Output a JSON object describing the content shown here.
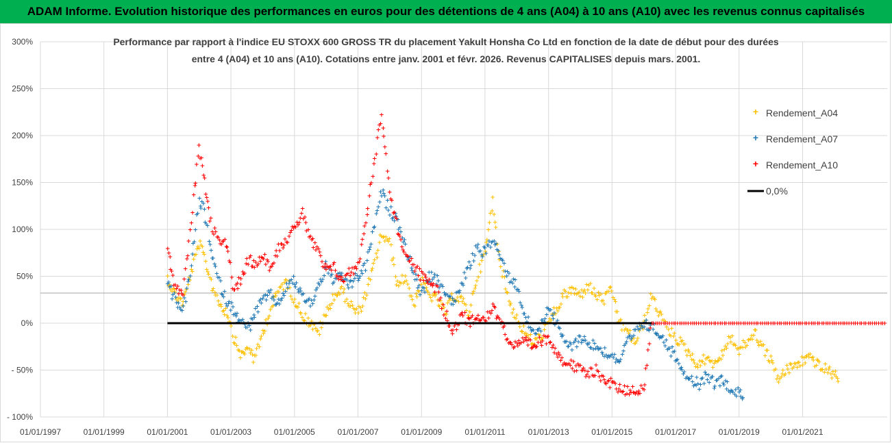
{
  "header": {
    "banner": "ADAM Informe. Evolution historique des performances en euros pour des détentions de 4 ans (A04) à 10 ans (A10) avec les revenus connus capitalisés"
  },
  "colors": {
    "banner_bg": "#00b050",
    "A04": "#ffc000",
    "A07": "#1f77b4",
    "A10": "#ff0000",
    "zero": "#000000"
  },
  "chart_data": {
    "type": "scatter",
    "title_line1": "Performance par rapport à l'indice EU STOXX 600 GROSS TR  du placement Yakult Honsha Co Ltd en fonction de la date de début pour des durées",
    "title_line2": "entre 4 (A04) et 10 ans (A10). Cotations entre janv. 2001 et févr. 2026. Revenus CAPITALISES depuis mars. 2001.",
    "xlim": [
      "1997-01-01",
      "2023-09-01"
    ],
    "ylim": [
      -100,
      300
    ],
    "x_ticks": [
      "01/01/1997",
      "01/01/1999",
      "01/01/2001",
      "01/01/2003",
      "01/01/2005",
      "01/01/2007",
      "01/01/2009",
      "01/01/2011",
      "01/01/2013",
      "01/01/2015",
      "01/01/2017",
      "01/01/2019",
      "01/01/2021"
    ],
    "y_ticks": [
      "300%",
      "250%",
      "200%",
      "150%",
      "100%",
      "50%",
      "0%",
      "- 50%",
      "- 100%"
    ],
    "y_tick_values": [
      300,
      250,
      200,
      150,
      100,
      50,
      0,
      -50,
      -100
    ],
    "grid": true,
    "legend_position": "top-right",
    "series": [
      {
        "name": "Rendement_A04",
        "points": [
          [
            "2001-01-01",
            48
          ],
          [
            "2001-04-01",
            30
          ],
          [
            "2001-07-01",
            22
          ],
          [
            "2001-10-01",
            55
          ],
          [
            "2002-01-01",
            85
          ],
          [
            "2002-03-01",
            70
          ],
          [
            "2002-06-01",
            40
          ],
          [
            "2002-09-01",
            20
          ],
          [
            "2002-12-01",
            10
          ],
          [
            "2003-02-01",
            -15
          ],
          [
            "2003-05-01",
            -35
          ],
          [
            "2003-08-01",
            -25
          ],
          [
            "2003-10-01",
            -40
          ],
          [
            "2004-01-01",
            -10
          ],
          [
            "2004-04-01",
            15
          ],
          [
            "2004-07-01",
            35
          ],
          [
            "2004-10-01",
            45
          ],
          [
            "2005-01-01",
            25
          ],
          [
            "2005-04-01",
            10
          ],
          [
            "2005-07-01",
            0
          ],
          [
            "2005-10-01",
            -10
          ],
          [
            "2006-01-01",
            10
          ],
          [
            "2006-04-01",
            30
          ],
          [
            "2006-07-01",
            35
          ],
          [
            "2006-10-01",
            20
          ],
          [
            "2007-01-01",
            10
          ],
          [
            "2007-04-01",
            30
          ],
          [
            "2007-07-01",
            60
          ],
          [
            "2007-10-01",
            95
          ],
          [
            "2008-01-01",
            85
          ],
          [
            "2008-04-01",
            40
          ],
          [
            "2008-07-01",
            50
          ],
          [
            "2008-10-01",
            20
          ],
          [
            "2009-01-01",
            45
          ],
          [
            "2009-04-01",
            30
          ],
          [
            "2009-07-01",
            25
          ],
          [
            "2009-10-01",
            10
          ],
          [
            "2010-01-01",
            30
          ],
          [
            "2010-04-01",
            25
          ],
          [
            "2010-07-01",
            10
          ],
          [
            "2010-10-01",
            50
          ],
          [
            "2011-01-01",
            75
          ],
          [
            "2011-04-01",
            130
          ],
          [
            "2011-07-01",
            60
          ],
          [
            "2011-10-01",
            25
          ],
          [
            "2012-01-01",
            5
          ],
          [
            "2012-04-01",
            -10
          ],
          [
            "2012-07-01",
            -20
          ],
          [
            "2012-10-01",
            -15
          ],
          [
            "2013-01-01",
            0
          ],
          [
            "2013-04-01",
            15
          ],
          [
            "2013-07-01",
            30
          ],
          [
            "2013-10-01",
            35
          ],
          [
            "2014-01-01",
            30
          ],
          [
            "2014-04-01",
            40
          ],
          [
            "2014-07-01",
            30
          ],
          [
            "2014-10-01",
            25
          ],
          [
            "2015-01-01",
            35
          ],
          [
            "2015-04-01",
            0
          ],
          [
            "2015-07-01",
            -10
          ],
          [
            "2015-10-01",
            -20
          ],
          [
            "2016-01-01",
            0
          ],
          [
            "2016-04-01",
            30
          ],
          [
            "2016-07-01",
            10
          ],
          [
            "2016-10-01",
            -5
          ],
          [
            "2017-01-01",
            -15
          ],
          [
            "2017-04-01",
            -25
          ],
          [
            "2017-07-01",
            -35
          ],
          [
            "2017-10-01",
            -45
          ],
          [
            "2018-01-01",
            -35
          ],
          [
            "2018-04-01",
            -45
          ],
          [
            "2018-07-01",
            -30
          ],
          [
            "2018-10-01",
            -15
          ],
          [
            "2019-01-01",
            -30
          ],
          [
            "2019-04-01",
            -20
          ],
          [
            "2019-07-01",
            -10
          ],
          [
            "2019-10-01",
            -25
          ],
          [
            "2020-01-01",
            -40
          ],
          [
            "2020-04-01",
            -60
          ],
          [
            "2020-07-01",
            -50
          ],
          [
            "2020-10-01",
            -45
          ],
          [
            "2021-01-01",
            -40
          ],
          [
            "2021-04-01",
            -35
          ],
          [
            "2021-07-01",
            -45
          ],
          [
            "2021-10-01",
            -50
          ],
          [
            "2022-01-01",
            -55
          ],
          [
            "2022-03-01",
            -58
          ]
        ]
      },
      {
        "name": "Rendement_A07",
        "points": [
          [
            "2001-01-01",
            40
          ],
          [
            "2001-04-01",
            25
          ],
          [
            "2001-07-01",
            15
          ],
          [
            "2001-10-01",
            60
          ],
          [
            "2002-01-01",
            130
          ],
          [
            "2002-03-01",
            120
          ],
          [
            "2002-06-01",
            70
          ],
          [
            "2002-09-01",
            40
          ],
          [
            "2002-12-01",
            20
          ],
          [
            "2003-02-01",
            15
          ],
          [
            "2003-05-01",
            0
          ],
          [
            "2003-08-01",
            -5
          ],
          [
            "2003-10-01",
            10
          ],
          [
            "2004-01-01",
            25
          ],
          [
            "2004-04-01",
            30
          ],
          [
            "2004-07-01",
            20
          ],
          [
            "2004-10-01",
            40
          ],
          [
            "2005-01-01",
            45
          ],
          [
            "2005-04-01",
            30
          ],
          [
            "2005-07-01",
            20
          ],
          [
            "2005-10-01",
            40
          ],
          [
            "2006-01-01",
            60
          ],
          [
            "2006-04-01",
            45
          ],
          [
            "2006-07-01",
            50
          ],
          [
            "2006-10-01",
            40
          ],
          [
            "2007-01-01",
            50
          ],
          [
            "2007-04-01",
            60
          ],
          [
            "2007-07-01",
            100
          ],
          [
            "2007-10-01",
            140
          ],
          [
            "2008-01-01",
            120
          ],
          [
            "2008-04-01",
            110
          ],
          [
            "2008-07-01",
            80
          ],
          [
            "2008-10-01",
            55
          ],
          [
            "2009-01-01",
            30
          ],
          [
            "2009-04-01",
            50
          ],
          [
            "2009-07-01",
            45
          ],
          [
            "2009-10-01",
            35
          ],
          [
            "2010-01-01",
            20
          ],
          [
            "2010-04-01",
            40
          ],
          [
            "2010-07-01",
            60
          ],
          [
            "2010-10-01",
            80
          ],
          [
            "2011-01-01",
            75
          ],
          [
            "2011-04-01",
            90
          ],
          [
            "2011-07-01",
            70
          ],
          [
            "2011-10-01",
            50
          ],
          [
            "2012-01-01",
            40
          ],
          [
            "2012-04-01",
            10
          ],
          [
            "2012-07-01",
            -10
          ],
          [
            "2012-10-01",
            -5
          ],
          [
            "2013-01-01",
            20
          ],
          [
            "2013-04-01",
            0
          ],
          [
            "2013-07-01",
            -20
          ],
          [
            "2013-10-01",
            -25
          ],
          [
            "2014-01-01",
            -15
          ],
          [
            "2014-04-01",
            -20
          ],
          [
            "2014-07-01",
            -25
          ],
          [
            "2014-10-01",
            -30
          ],
          [
            "2015-01-01",
            -35
          ],
          [
            "2015-04-01",
            -40
          ],
          [
            "2015-07-01",
            -20
          ],
          [
            "2015-10-01",
            -10
          ],
          [
            "2016-01-01",
            0
          ],
          [
            "2016-04-01",
            -5
          ],
          [
            "2016-07-01",
            -10
          ],
          [
            "2016-10-01",
            -25
          ],
          [
            "2017-01-01",
            -35
          ],
          [
            "2017-04-01",
            -50
          ],
          [
            "2017-07-01",
            -60
          ],
          [
            "2017-10-01",
            -65
          ],
          [
            "2018-01-01",
            -55
          ],
          [
            "2018-04-01",
            -65
          ],
          [
            "2018-07-01",
            -60
          ],
          [
            "2018-10-01",
            -70
          ],
          [
            "2019-01-01",
            -75
          ],
          [
            "2019-03-01",
            -76
          ]
        ]
      },
      {
        "name": "Rendement_A10",
        "points": [
          [
            "2001-01-01",
            80
          ],
          [
            "2001-04-01",
            40
          ],
          [
            "2001-07-01",
            30
          ],
          [
            "2001-10-01",
            110
          ],
          [
            "2002-01-01",
            185
          ],
          [
            "2002-03-01",
            150
          ],
          [
            "2002-06-01",
            100
          ],
          [
            "2002-09-01",
            90
          ],
          [
            "2002-12-01",
            80
          ],
          [
            "2003-02-01",
            30
          ],
          [
            "2003-05-01",
            50
          ],
          [
            "2003-08-01",
            70
          ],
          [
            "2003-10-01",
            60
          ],
          [
            "2004-01-01",
            75
          ],
          [
            "2004-04-01",
            60
          ],
          [
            "2004-07-01",
            80
          ],
          [
            "2004-10-01",
            90
          ],
          [
            "2005-01-01",
            100
          ],
          [
            "2005-04-01",
            120
          ],
          [
            "2005-07-01",
            90
          ],
          [
            "2005-10-01",
            75
          ],
          [
            "2006-01-01",
            55
          ],
          [
            "2006-04-01",
            60
          ],
          [
            "2006-07-01",
            45
          ],
          [
            "2006-10-01",
            55
          ],
          [
            "2007-01-01",
            60
          ],
          [
            "2007-04-01",
            110
          ],
          [
            "2007-07-01",
            170
          ],
          [
            "2007-10-01",
            225
          ],
          [
            "2008-01-01",
            140
          ],
          [
            "2008-04-01",
            100
          ],
          [
            "2008-07-01",
            75
          ],
          [
            "2008-10-01",
            60
          ],
          [
            "2009-01-01",
            50
          ],
          [
            "2009-04-01",
            45
          ],
          [
            "2009-07-01",
            35
          ],
          [
            "2009-10-01",
            10
          ],
          [
            "2010-01-01",
            -10
          ],
          [
            "2010-04-01",
            10
          ],
          [
            "2010-07-01",
            0
          ],
          [
            "2010-10-01",
            10
          ],
          [
            "2011-01-01",
            5
          ],
          [
            "2011-04-01",
            15
          ],
          [
            "2011-07-01",
            5
          ],
          [
            "2011-10-01",
            -20
          ],
          [
            "2012-01-01",
            -25
          ],
          [
            "2012-04-01",
            -20
          ],
          [
            "2012-07-01",
            -25
          ],
          [
            "2012-10-01",
            -20
          ],
          [
            "2013-01-01",
            -15
          ],
          [
            "2013-04-01",
            -30
          ],
          [
            "2013-07-01",
            -40
          ],
          [
            "2013-10-01",
            -45
          ],
          [
            "2014-01-01",
            -50
          ],
          [
            "2014-04-01",
            -55
          ],
          [
            "2014-07-01",
            -50
          ],
          [
            "2014-10-01",
            -60
          ],
          [
            "2015-01-01",
            -65
          ],
          [
            "2015-04-01",
            -70
          ],
          [
            "2015-07-01",
            -72
          ],
          [
            "2015-10-01",
            -70
          ],
          [
            "2016-01-01",
            -71
          ],
          [
            "2016-04-01",
            0
          ],
          [
            "2017-01-01",
            0
          ],
          [
            "2018-01-01",
            0
          ],
          [
            "2019-01-01",
            0
          ],
          [
            "2020-01-01",
            0
          ],
          [
            "2021-01-01",
            0
          ],
          [
            "2022-01-01",
            0
          ],
          [
            "2023-01-01",
            0
          ],
          [
            "2023-08-31",
            0
          ]
        ]
      },
      {
        "name": "0,0%",
        "points": [
          [
            "2001-01-01",
            0
          ],
          [
            "2016-04-01",
            0
          ]
        ]
      }
    ]
  }
}
